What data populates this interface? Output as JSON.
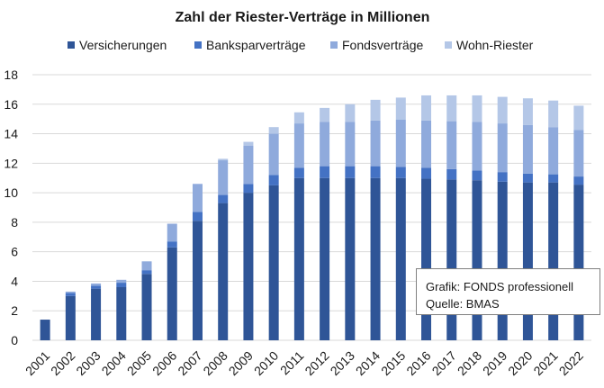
{
  "chart_data": {
    "type": "bar",
    "stacked": true,
    "title": "Zahl der Riester-Verträge in Millionen",
    "xlabel": "",
    "ylabel": "",
    "ylim": [
      0,
      18
    ],
    "yticks": [
      0,
      2,
      4,
      6,
      8,
      10,
      12,
      14,
      16,
      18
    ],
    "grid": true,
    "legend": "top",
    "categories": [
      "2001",
      "2002",
      "2003",
      "2004",
      "2005",
      "2006",
      "2007",
      "2008",
      "2009",
      "2010",
      "2011",
      "2012",
      "2013",
      "2014",
      "2015",
      "2016",
      "2017",
      "2018",
      "2019",
      "2020",
      "2021",
      "2022"
    ],
    "series": [
      {
        "name": "Versicherungen",
        "color": "#2f5597",
        "values": [
          1.4,
          3.0,
          3.5,
          3.6,
          4.5,
          6.3,
          8.1,
          9.3,
          10.0,
          10.5,
          11.0,
          11.0,
          11.0,
          11.0,
          11.0,
          10.95,
          10.9,
          10.85,
          10.75,
          10.7,
          10.7,
          10.55
        ]
      },
      {
        "name": "Banksparverträge",
        "color": "#4472c4",
        "values": [
          0.0,
          0.2,
          0.2,
          0.3,
          0.25,
          0.4,
          0.6,
          0.55,
          0.6,
          0.7,
          0.7,
          0.8,
          0.8,
          0.8,
          0.75,
          0.75,
          0.7,
          0.65,
          0.65,
          0.6,
          0.55,
          0.55
        ]
      },
      {
        "name": "Fondsverträge",
        "color": "#8faadc",
        "values": [
          0.0,
          0.1,
          0.15,
          0.2,
          0.6,
          1.2,
          1.9,
          2.35,
          2.6,
          2.8,
          3.0,
          3.0,
          3.0,
          3.1,
          3.2,
          3.2,
          3.25,
          3.3,
          3.3,
          3.3,
          3.2,
          3.15
        ]
      },
      {
        "name": "Wohn-Riester",
        "color": "#b4c7e7",
        "values": [
          0.0,
          0.0,
          0.0,
          0.0,
          0.0,
          0.0,
          0.0,
          0.1,
          0.25,
          0.45,
          0.75,
          0.95,
          1.2,
          1.4,
          1.5,
          1.7,
          1.75,
          1.8,
          1.8,
          1.8,
          1.8,
          1.65
        ]
      }
    ]
  },
  "source_box": {
    "line1": "Grafik: FONDS professionell",
    "line2": "Quelle: BMAS"
  }
}
